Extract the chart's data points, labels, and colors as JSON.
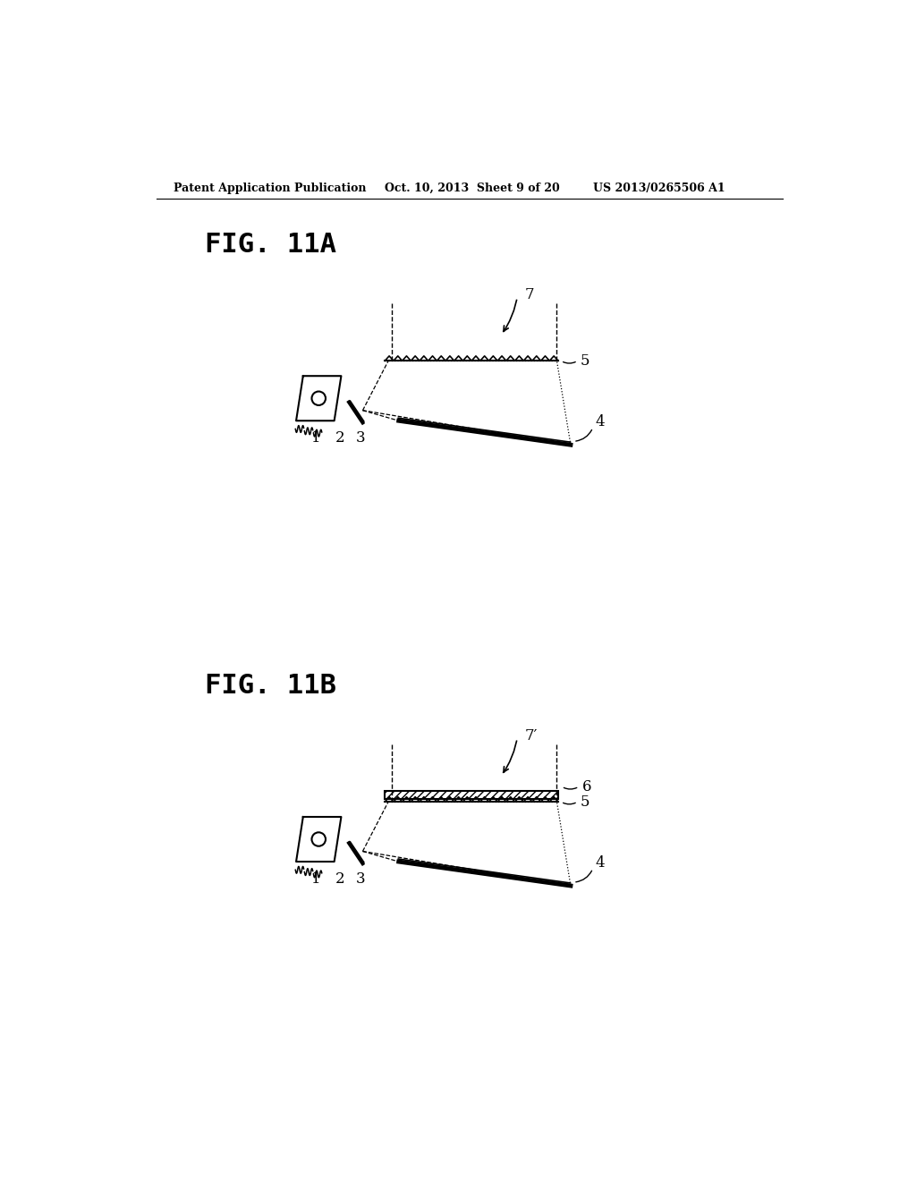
{
  "bg_color": "#ffffff",
  "header_left": "Patent Application Publication",
  "header_mid": "Oct. 10, 2013  Sheet 9 of 20",
  "header_right": "US 2013/0265506 A1",
  "fig11a_label": "FIG. 11A",
  "fig11b_label": "FIG. 11B",
  "label_1": "1",
  "label_2": "2",
  "label_3": "3",
  "label_4": "4",
  "label_5": "5",
  "label_6": "6",
  "label_7": "7",
  "label_7prime": "7′"
}
